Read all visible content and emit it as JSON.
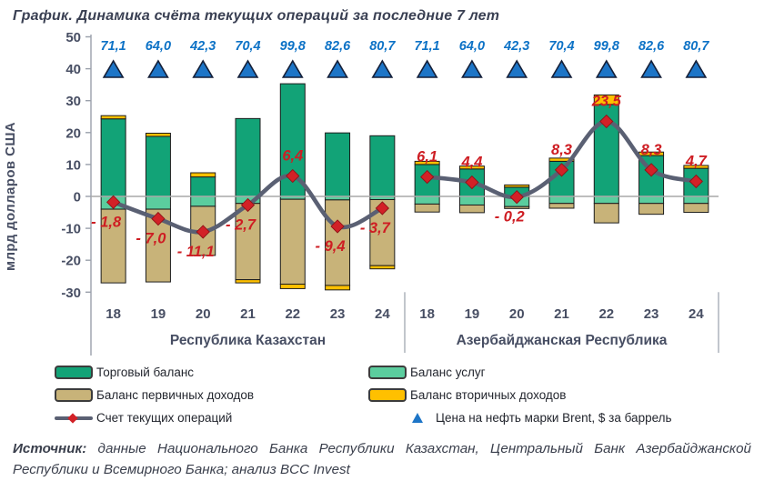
{
  "title": "График. Динамика счёта текущих операций за последние 7 лет",
  "y_axis": {
    "label": "млрд долларов США",
    "ticks": [
      50,
      40,
      30,
      20,
      10,
      0,
      -10,
      -20,
      -30
    ],
    "min": -30,
    "max": 50
  },
  "chart_data": {
    "type": "combo: stacked bars + smoothed line with diamond markers + triangle point series",
    "unit": "млрд долларов США",
    "ylim": [
      -30,
      50
    ],
    "series_keys": [
      "trade_balance",
      "services_balance",
      "primary_income_balance",
      "secondary_income_balance"
    ],
    "brent_marker_level": 40,
    "groups": [
      {
        "label": "Республика Казахстан",
        "categories": [
          "18",
          "19",
          "20",
          "21",
          "22",
          "23",
          "24"
        ],
        "series": {
          "trade_balance": [
            24.3,
            18.8,
            6.1,
            24.4,
            35.3,
            19.9,
            19.0
          ],
          "services_balance": [
            -4.0,
            -4.0,
            -3.1,
            -2.2,
            -0.9,
            -1.1,
            -1.0
          ],
          "primary_income_balance": [
            -23.1,
            -22.8,
            -15.4,
            -23.9,
            -26.6,
            -26.8,
            -20.7
          ],
          "secondary_income_balance": [
            1.0,
            1.0,
            1.3,
            -1.0,
            -1.4,
            -1.4,
            -1.0
          ]
        },
        "current_account": [
          -1.8,
          -7.0,
          -11.1,
          -2.7,
          6.4,
          -9.4,
          -3.7
        ],
        "current_account_labels": [
          "- 1,8",
          "- 7,0",
          "- 11,1",
          "- 2,7",
          "6,4",
          "- 9,4",
          "- 3,7"
        ],
        "brent_price": [
          71.1,
          64.0,
          42.3,
          70.4,
          99.8,
          82.6,
          80.7
        ],
        "brent_labels": [
          "71,1",
          "64,0",
          "42,3",
          "70,4",
          "99,8",
          "82,6",
          "80,7"
        ]
      },
      {
        "label": "Азербайджанская Республика",
        "categories": [
          "18",
          "19",
          "20",
          "21",
          "22",
          "23",
          "24"
        ],
        "series": {
          "trade_balance": [
            10.0,
            8.6,
            2.9,
            11.0,
            28.8,
            12.8,
            8.8
          ],
          "services_balance": [
            -2.4,
            -2.7,
            -3.2,
            -2.2,
            -2.2,
            -2.2,
            -2.2
          ],
          "primary_income_balance": [
            -2.5,
            -2.4,
            -0.6,
            -1.5,
            -6.1,
            -3.4,
            -2.8
          ],
          "secondary_income_balance": [
            1.0,
            0.9,
            0.7,
            1.0,
            3.0,
            1.1,
            0.9
          ]
        },
        "current_account": [
          6.1,
          4.4,
          -0.2,
          8.3,
          23.5,
          8.3,
          4.7
        ],
        "current_account_labels": [
          "6,1",
          "4,4",
          "- 0,2",
          "8,3",
          "23,5",
          "8,3",
          "4,7"
        ],
        "brent_price": [
          71.1,
          64.0,
          42.3,
          70.4,
          99.8,
          82.6,
          80.7
        ],
        "brent_labels": [
          "71,1",
          "64,0",
          "42,3",
          "70,4",
          "99,8",
          "82,6",
          "80,7"
        ]
      }
    ]
  },
  "colors": {
    "trade_balance": "#12a377",
    "services_balance": "#5bcd9e",
    "primary_income_balance": "#c8b379",
    "secondary_income_balance": "#ffc000",
    "bar_border": "#1c1c1c",
    "current_account_line": "#5a6073",
    "current_account_marker": "#d22127",
    "data_label_red": "#ce1d23",
    "brent_triangle": "#1d75c7",
    "brent_triangle_border": "#141f38",
    "brent_label_blue": "#0d72c6",
    "axis_text": "#474e63",
    "axis_line": "#9aa0ab",
    "zero_line": "#a9a9a9",
    "title_text": "#3a4053"
  },
  "legend": {
    "items": [
      {
        "label": "Торговый баланс",
        "swatch": "bar",
        "color_key": "trade_balance"
      },
      {
        "label": "Баланс услуг",
        "swatch": "bar",
        "color_key": "services_balance"
      },
      {
        "label": "Баланс первичных доходов",
        "swatch": "bar",
        "color_key": "primary_income_balance"
      },
      {
        "label": "Баланс вторичных доходов",
        "swatch": "bar",
        "color_key": "secondary_income_balance"
      },
      {
        "label": "Счет текущих операций",
        "swatch": "line",
        "color_key": "current_account_line"
      },
      {
        "label": "Цена на нефть марки Brent, $ за баррель",
        "swatch": "triangle",
        "color_key": "brent_triangle"
      }
    ]
  },
  "source": {
    "label": "Источник:",
    "text": "данные Национального Банка Республики Казахстан, Центральный Банк Азербайджанской Республики и Всемирного Банка; анализ BCC Invest"
  }
}
